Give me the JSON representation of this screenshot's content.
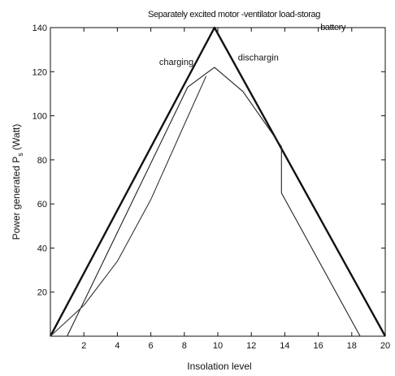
{
  "chart_data": {
    "type": "line",
    "title": "Separately excited motor -ventilator load-storag",
    "title_line2": "-battery",
    "xlabel": "Insolation level",
    "ylabel": "Power generated P",
    "ylabel_subscript": "s",
    "ylabel_unit": " (Watt)",
    "xlim": [
      0,
      20
    ],
    "ylim": [
      0,
      140
    ],
    "x_ticks": [
      2,
      4,
      6,
      8,
      10,
      12,
      14,
      16,
      18,
      20
    ],
    "y_ticks": [
      20,
      40,
      60,
      80,
      100,
      120,
      140
    ],
    "grid": false,
    "annotations": [
      {
        "text": "charging",
        "x": 6.5,
        "y": 123
      },
      {
        "text": "dischargin",
        "x": 11.2,
        "y": 125
      }
    ],
    "series": [
      {
        "color": "#111111",
        "width": 2.4,
        "points": [
          [
            0,
            0
          ],
          [
            9.8,
            140
          ],
          [
            20,
            0
          ]
        ]
      },
      {
        "color": "#222222",
        "width": 1.1,
        "points": [
          [
            1,
            0
          ],
          [
            8.2,
            113
          ],
          [
            9.8,
            122
          ],
          [
            11.5,
            111
          ],
          [
            13.8,
            86
          ],
          [
            13.8,
            65
          ],
          [
            18.5,
            0
          ]
        ]
      },
      {
        "color": "#333333",
        "width": 1.1,
        "points": [
          [
            0,
            0
          ],
          [
            2.0,
            14
          ],
          [
            4.0,
            34
          ],
          [
            6.0,
            62
          ],
          [
            8.0,
            96
          ],
          [
            9.3,
            118
          ]
        ]
      }
    ]
  }
}
